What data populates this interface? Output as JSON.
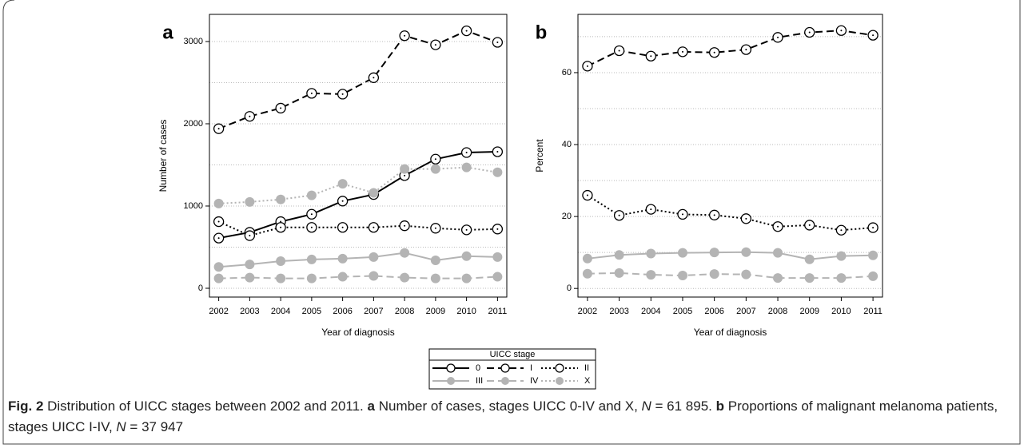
{
  "chart_data": [
    {
      "type": "line",
      "panel": "a",
      "ylabel": "Number of cases",
      "xlabel": "Year of diagnosis",
      "x": [
        2002,
        2003,
        2004,
        2005,
        2006,
        2007,
        2008,
        2009,
        2010,
        2011
      ],
      "xlim": [
        2001.7,
        2011.3
      ],
      "xticks": [
        2002,
        2003,
        2004,
        2005,
        2006,
        2007,
        2008,
        2009,
        2010,
        2011
      ],
      "ylim": [
        -107,
        3330
      ],
      "yticks": [
        0,
        1000,
        2000,
        3000
      ],
      "ygrid": [
        0,
        500,
        1000,
        1500,
        2000,
        2500,
        3000
      ],
      "series": [
        {
          "name": "0",
          "color": "#000000",
          "dash": "solid",
          "marker": "open",
          "values": [
            610,
            680,
            810,
            900,
            1060,
            1140,
            1370,
            1570,
            1650,
            1660
          ]
        },
        {
          "name": "I",
          "color": "#000000",
          "dash": "dashed",
          "marker": "open",
          "values": [
            1940,
            2090,
            2190,
            2370,
            2360,
            2560,
            3070,
            2960,
            3130,
            2990
          ]
        },
        {
          "name": "II",
          "color": "#000000",
          "dash": "dotted",
          "marker": "open",
          "values": [
            810,
            640,
            740,
            740,
            740,
            740,
            760,
            730,
            710,
            720
          ]
        },
        {
          "name": "III",
          "color": "#b4b4b4",
          "dash": "solid",
          "marker": "filled",
          "values": [
            260,
            290,
            330,
            350,
            360,
            380,
            430,
            340,
            390,
            380
          ]
        },
        {
          "name": "IV",
          "color": "#b4b4b4",
          "dash": "dashed",
          "marker": "filled",
          "values": [
            120,
            130,
            120,
            120,
            140,
            150,
            130,
            120,
            120,
            140
          ]
        },
        {
          "name": "X",
          "color": "#b4b4b4",
          "dash": "dotted",
          "marker": "filled",
          "values": [
            1030,
            1050,
            1080,
            1130,
            1270,
            1160,
            1450,
            1450,
            1470,
            1410
          ]
        }
      ]
    },
    {
      "type": "line",
      "panel": "b",
      "ylabel": "Percent",
      "xlabel": "Year of diagnosis",
      "x": [
        2002,
        2003,
        2004,
        2005,
        2006,
        2007,
        2008,
        2009,
        2010,
        2011
      ],
      "xlim": [
        2001.7,
        2011.3
      ],
      "xticks": [
        2002,
        2003,
        2004,
        2005,
        2006,
        2007,
        2008,
        2009,
        2010,
        2011
      ],
      "ylim": [
        -2.4,
        76.2
      ],
      "yticks": [
        0,
        20,
        40,
        60
      ],
      "ygrid": [
        0,
        10,
        20,
        30,
        40,
        50,
        60,
        70
      ],
      "series": [
        {
          "name": "I",
          "color": "#000000",
          "dash": "dashed",
          "marker": "open",
          "values": [
            61.8,
            66.1,
            64.6,
            65.8,
            65.6,
            66.4,
            69.8,
            71.2,
            71.7,
            70.4
          ]
        },
        {
          "name": "II",
          "color": "#000000",
          "dash": "dotted",
          "marker": "open",
          "values": [
            25.9,
            20.3,
            22.0,
            20.6,
            20.4,
            19.4,
            17.2,
            17.6,
            16.2,
            16.9
          ]
        },
        {
          "name": "III",
          "color": "#b4b4b4",
          "dash": "solid",
          "marker": "filled",
          "values": [
            8.3,
            9.3,
            9.7,
            9.9,
            10.0,
            10.1,
            9.9,
            8.1,
            9.0,
            9.2
          ]
        },
        {
          "name": "IV",
          "color": "#b4b4b4",
          "dash": "dashed",
          "marker": "filled",
          "values": [
            4.1,
            4.3,
            3.8,
            3.6,
            4.0,
            3.9,
            2.9,
            2.9,
            2.9,
            3.4
          ]
        }
      ]
    }
  ],
  "legend": {
    "title": "UICC stage"
  },
  "caption": [
    {
      "text": "Fig. 2",
      "bold": true
    },
    {
      "text": " Distribution of UICC stages between 2002 and 2011. "
    },
    {
      "text": "a",
      "bold": true
    },
    {
      "text": " Number of cases, stages UICC 0-IV and X, "
    },
    {
      "text": "N",
      "italic": true
    },
    {
      "text": " = 61 895. "
    },
    {
      "text": "b",
      "bold": true
    },
    {
      "text": " Proportions of malignant melanoma patients, stages UICC I-IV, "
    },
    {
      "text": "N",
      "italic": true
    },
    {
      "text": " = 37 947"
    }
  ]
}
